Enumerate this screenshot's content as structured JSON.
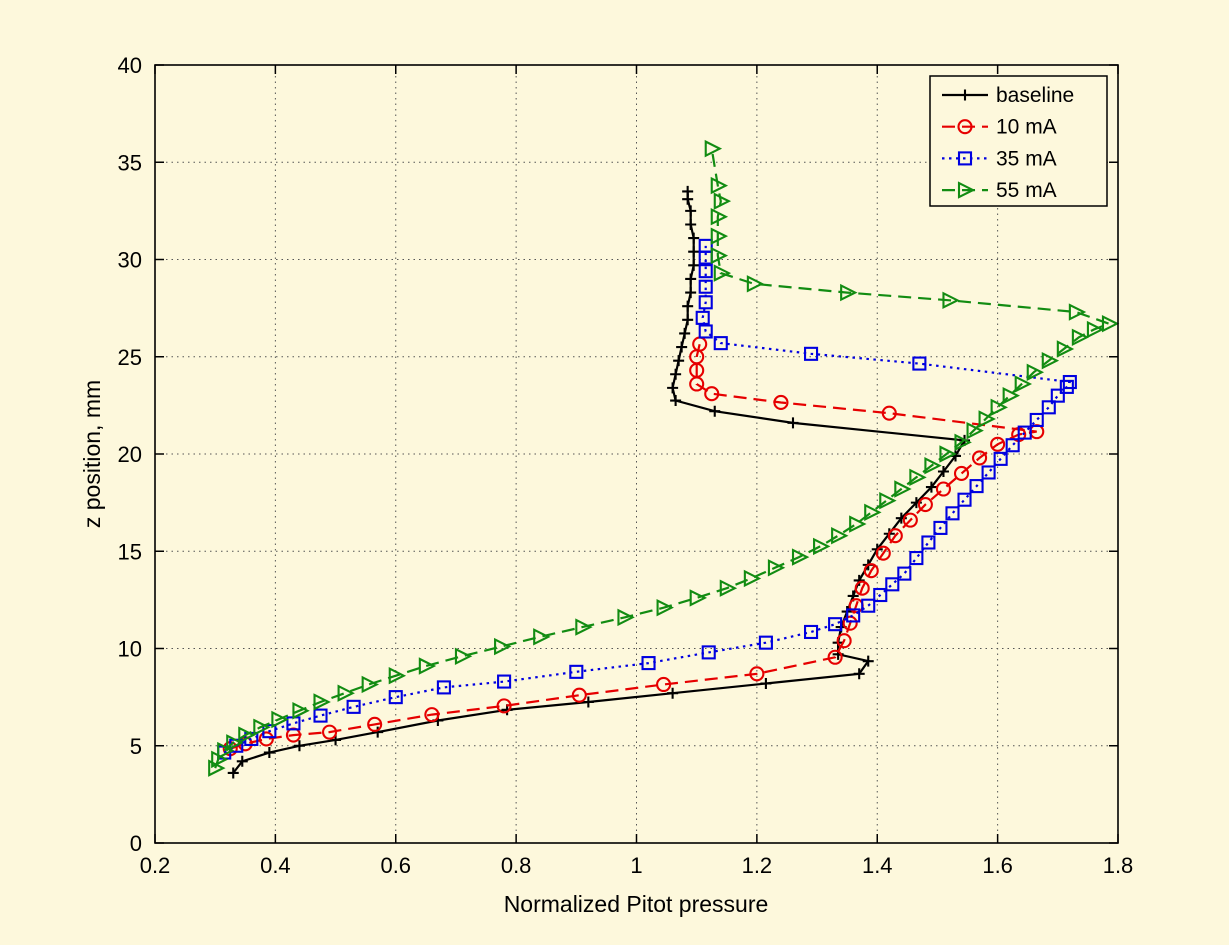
{
  "figure": {
    "background": "#fdf8dc"
  },
  "chart_data": {
    "type": "line",
    "title": "",
    "xlabel": "Normalized Pitot pressure",
    "ylabel": "z position, mm",
    "xlim": [
      0.2,
      1.8
    ],
    "ylim": [
      0,
      40
    ],
    "xticks": [
      0.2,
      0.4,
      0.6,
      0.8,
      1,
      1.2,
      1.4,
      1.6,
      1.8
    ],
    "xtick_labels": [
      "0.2",
      "0.4",
      "0.6",
      "0.8",
      "1",
      "1.2",
      "1.4",
      "1.6",
      "1.8"
    ],
    "yticks": [
      0,
      5,
      10,
      15,
      20,
      25,
      30,
      35,
      40
    ],
    "ytick_labels": [
      "0",
      "5",
      "10",
      "15",
      "20",
      "25",
      "30",
      "35",
      "40"
    ],
    "grid": true,
    "legend_position": "top-right",
    "series": [
      {
        "name": "baseline",
        "color": "#000000",
        "line": "solid",
        "marker": "plus",
        "points": [
          [
            0.33,
            3.6
          ],
          [
            0.345,
            4.2
          ],
          [
            0.39,
            4.65
          ],
          [
            0.44,
            5.0
          ],
          [
            0.5,
            5.3
          ],
          [
            0.57,
            5.7
          ],
          [
            0.67,
            6.3
          ],
          [
            0.785,
            6.85
          ],
          [
            0.92,
            7.25
          ],
          [
            1.06,
            7.7
          ],
          [
            1.215,
            8.2
          ],
          [
            1.37,
            8.7
          ],
          [
            1.385,
            9.35
          ],
          [
            1.335,
            9.7
          ],
          [
            1.335,
            10.3
          ],
          [
            1.34,
            11.1
          ],
          [
            1.35,
            11.9
          ],
          [
            1.36,
            12.7
          ],
          [
            1.37,
            13.5
          ],
          [
            1.385,
            14.3
          ],
          [
            1.4,
            15.1
          ],
          [
            1.42,
            15.9
          ],
          [
            1.44,
            16.7
          ],
          [
            1.465,
            17.5
          ],
          [
            1.49,
            18.3
          ],
          [
            1.51,
            19.1
          ],
          [
            1.53,
            19.9
          ],
          [
            1.545,
            20.7
          ],
          [
            1.26,
            21.6
          ],
          [
            1.13,
            22.2
          ],
          [
            1.065,
            22.75
          ],
          [
            1.06,
            23.4
          ],
          [
            1.065,
            24.1
          ],
          [
            1.07,
            24.8
          ],
          [
            1.075,
            25.5
          ],
          [
            1.08,
            26.2
          ],
          [
            1.085,
            26.9
          ],
          [
            1.085,
            27.6
          ],
          [
            1.09,
            28.3
          ],
          [
            1.09,
            29.0
          ],
          [
            1.095,
            29.7
          ],
          [
            1.095,
            30.4
          ],
          [
            1.095,
            31.1
          ],
          [
            1.09,
            31.8
          ],
          [
            1.09,
            32.5
          ],
          [
            1.085,
            33.1
          ],
          [
            1.085,
            33.5
          ]
        ]
      },
      {
        "name": "10 mA",
        "color": "#e60000",
        "line": "dashed",
        "marker": "circle",
        "points": [
          [
            0.325,
            4.85
          ],
          [
            0.35,
            5.1
          ],
          [
            0.385,
            5.35
          ],
          [
            0.43,
            5.55
          ],
          [
            0.49,
            5.7
          ],
          [
            0.565,
            6.1
          ],
          [
            0.66,
            6.6
          ],
          [
            0.78,
            7.05
          ],
          [
            0.905,
            7.6
          ],
          [
            1.045,
            8.15
          ],
          [
            1.2,
            8.7
          ],
          [
            1.33,
            9.55
          ],
          [
            1.345,
            10.4
          ],
          [
            1.355,
            11.3
          ],
          [
            1.365,
            12.2
          ],
          [
            1.375,
            13.1
          ],
          [
            1.39,
            14.0
          ],
          [
            1.41,
            14.9
          ],
          [
            1.43,
            15.8
          ],
          [
            1.455,
            16.6
          ],
          [
            1.48,
            17.4
          ],
          [
            1.51,
            18.2
          ],
          [
            1.54,
            19.0
          ],
          [
            1.57,
            19.8
          ],
          [
            1.6,
            20.5
          ],
          [
            1.635,
            21.0
          ],
          [
            1.665,
            21.15
          ],
          [
            1.42,
            22.1
          ],
          [
            1.24,
            22.65
          ],
          [
            1.125,
            23.1
          ],
          [
            1.1,
            23.6
          ],
          [
            1.1,
            24.3
          ],
          [
            1.1,
            25.0
          ],
          [
            1.105,
            25.65
          ]
        ]
      },
      {
        "name": "35 mA",
        "color": "#0000e0",
        "line": "dotted",
        "marker": "square",
        "points": [
          [
            0.315,
            4.65
          ],
          [
            0.335,
            5.0
          ],
          [
            0.36,
            5.35
          ],
          [
            0.39,
            5.75
          ],
          [
            0.43,
            6.15
          ],
          [
            0.475,
            6.55
          ],
          [
            0.53,
            7.0
          ],
          [
            0.6,
            7.5
          ],
          [
            0.68,
            8.0
          ],
          [
            0.78,
            8.3
          ],
          [
            0.9,
            8.8
          ],
          [
            1.02,
            9.25
          ],
          [
            1.12,
            9.8
          ],
          [
            1.215,
            10.3
          ],
          [
            1.29,
            10.85
          ],
          [
            1.33,
            11.25
          ],
          [
            1.36,
            11.7
          ],
          [
            1.385,
            12.2
          ],
          [
            1.405,
            12.75
          ],
          [
            1.425,
            13.3
          ],
          [
            1.445,
            13.85
          ],
          [
            1.465,
            14.65
          ],
          [
            1.485,
            15.45
          ],
          [
            1.505,
            16.2
          ],
          [
            1.525,
            16.95
          ],
          [
            1.545,
            17.65
          ],
          [
            1.565,
            18.35
          ],
          [
            1.585,
            19.05
          ],
          [
            1.605,
            19.75
          ],
          [
            1.625,
            20.45
          ],
          [
            1.645,
            21.1
          ],
          [
            1.665,
            21.75
          ],
          [
            1.685,
            22.4
          ],
          [
            1.7,
            23.0
          ],
          [
            1.715,
            23.45
          ],
          [
            1.72,
            23.7
          ],
          [
            1.47,
            24.65
          ],
          [
            1.29,
            25.15
          ],
          [
            1.14,
            25.7
          ],
          [
            1.115,
            26.3
          ],
          [
            1.11,
            27.0
          ],
          [
            1.115,
            27.8
          ],
          [
            1.115,
            28.6
          ],
          [
            1.115,
            29.4
          ],
          [
            1.115,
            30.1
          ],
          [
            1.115,
            30.7
          ]
        ]
      },
      {
        "name": "55 mA",
        "color": "#128c12",
        "line": "dashed",
        "marker": "triangle-right",
        "points": [
          [
            0.3,
            3.85
          ],
          [
            0.305,
            4.3
          ],
          [
            0.315,
            4.75
          ],
          [
            0.33,
            5.15
          ],
          [
            0.35,
            5.55
          ],
          [
            0.375,
            5.95
          ],
          [
            0.405,
            6.35
          ],
          [
            0.44,
            6.8
          ],
          [
            0.475,
            7.25
          ],
          [
            0.515,
            7.7
          ],
          [
            0.555,
            8.15
          ],
          [
            0.6,
            8.6
          ],
          [
            0.65,
            9.1
          ],
          [
            0.71,
            9.6
          ],
          [
            0.775,
            10.1
          ],
          [
            0.84,
            10.6
          ],
          [
            0.91,
            11.1
          ],
          [
            0.98,
            11.6
          ],
          [
            1.045,
            12.1
          ],
          [
            1.1,
            12.6
          ],
          [
            1.15,
            13.1
          ],
          [
            1.19,
            13.6
          ],
          [
            1.23,
            14.15
          ],
          [
            1.27,
            14.7
          ],
          [
            1.305,
            15.25
          ],
          [
            1.335,
            15.8
          ],
          [
            1.365,
            16.4
          ],
          [
            1.39,
            17.0
          ],
          [
            1.415,
            17.6
          ],
          [
            1.44,
            18.2
          ],
          [
            1.465,
            18.8
          ],
          [
            1.49,
            19.4
          ],
          [
            1.515,
            20.0
          ],
          [
            1.54,
            20.6
          ],
          [
            1.56,
            21.2
          ],
          [
            1.58,
            21.8
          ],
          [
            1.6,
            22.4
          ],
          [
            1.62,
            23.0
          ],
          [
            1.64,
            23.6
          ],
          [
            1.66,
            24.2
          ],
          [
            1.685,
            24.8
          ],
          [
            1.71,
            25.4
          ],
          [
            1.735,
            26.0
          ],
          [
            1.76,
            26.4
          ],
          [
            1.785,
            26.7
          ],
          [
            1.73,
            27.3
          ],
          [
            1.52,
            27.9
          ],
          [
            1.35,
            28.3
          ],
          [
            1.195,
            28.75
          ],
          [
            1.14,
            29.3
          ],
          [
            1.135,
            30.2
          ],
          [
            1.135,
            31.2
          ],
          [
            1.135,
            32.2
          ],
          [
            1.14,
            33.0
          ],
          [
            1.135,
            33.8
          ],
          [
            1.125,
            35.7
          ]
        ]
      }
    ]
  }
}
